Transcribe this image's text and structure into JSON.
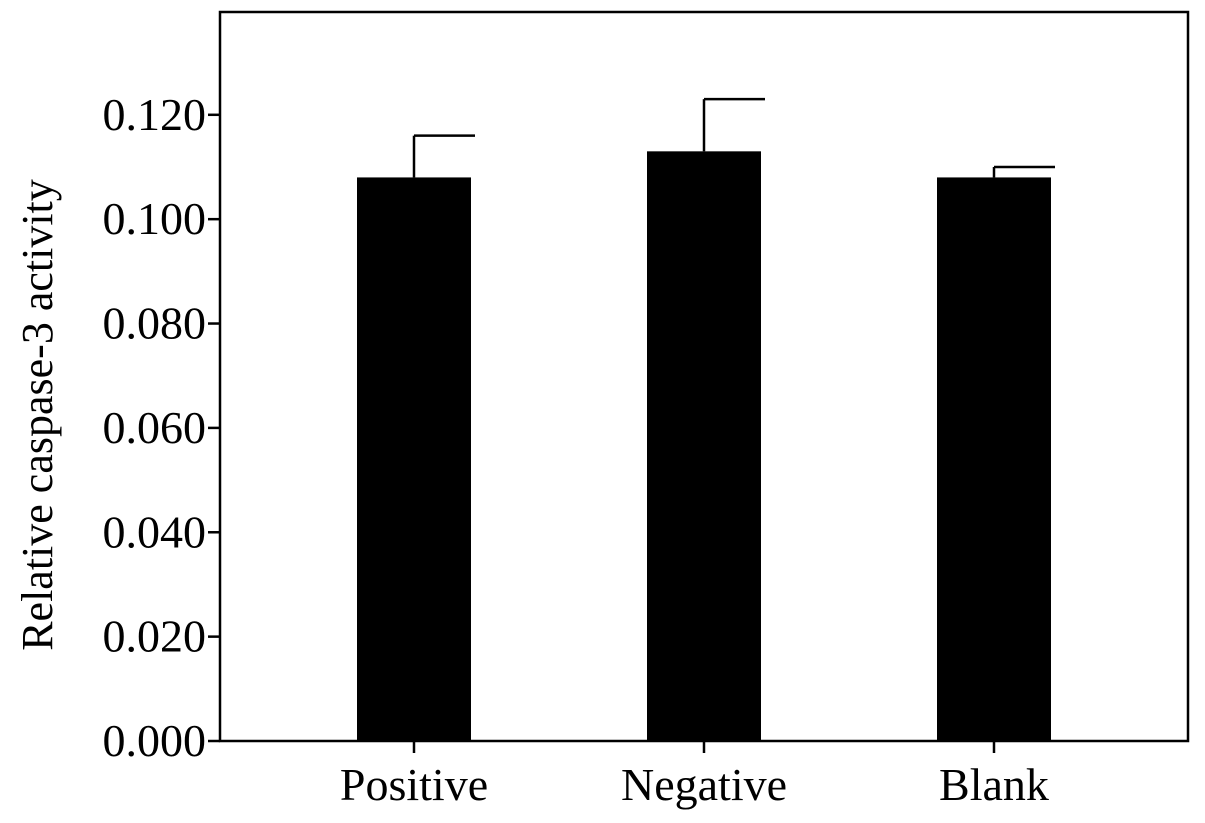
{
  "chart_data": {
    "type": "bar",
    "categories": [
      "Positive",
      "Negative",
      "Blank"
    ],
    "values": [
      0.108,
      0.113,
      0.108
    ],
    "errors": [
      0.008,
      0.01,
      0.002
    ],
    "title": "",
    "xlabel": "",
    "ylabel": "Relative caspase-3 activity",
    "ylim": [
      0,
      0.1397
    ],
    "yticks": [
      0.0,
      0.02,
      0.04,
      0.06,
      0.08,
      0.1,
      0.12
    ],
    "ytick_labels": [
      "0.000",
      "0.020",
      "0.040",
      "0.060",
      "0.080",
      "0.100",
      "0.120"
    ],
    "grid": false,
    "legend": "none",
    "colors": {
      "bar": "#000000",
      "axis": "#000000",
      "background": "#ffffff"
    }
  }
}
